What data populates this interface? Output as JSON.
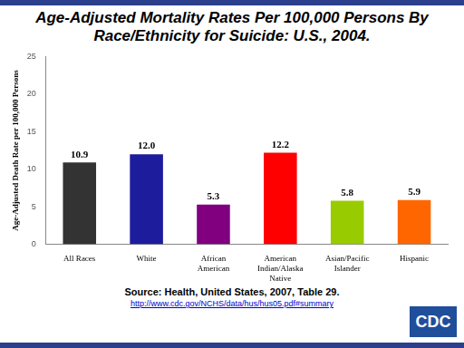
{
  "chart_data": {
    "type": "bar",
    "title": "Age-Adjusted Mortality Rates Per 100,000 Persons By Race/Ethnicity for Suicide: U.S., 2004.",
    "y_label": "Age-Adjusted Death Rate per 100,000 Persons",
    "categories": [
      "All Races",
      "White",
      "African American",
      "American Indian/Alaska Native",
      "Asian/Pacific Islander",
      "Hispanic"
    ],
    "values": [
      10.9,
      12.0,
      5.3,
      12.2,
      5.8,
      5.9
    ],
    "value_labels": [
      "10.9",
      "12.0",
      "5.3",
      "12.2",
      "5.8",
      "5.9"
    ],
    "colors": [
      "#333333",
      "#1c1c9c",
      "#800080",
      "#ff0000",
      "#99cc00",
      "#ff6600"
    ],
    "ylim": [
      0,
      25
    ],
    "yticks": [
      0,
      5,
      10,
      15,
      20,
      25
    ],
    "grid": false,
    "data_labels": true,
    "source": "Source: Health, United States, 2007, Table 29.",
    "source_url": "http://www.cdc.gov/NCHS/data/hus/hus05.pdf#summary",
    "logo": "CDC"
  }
}
